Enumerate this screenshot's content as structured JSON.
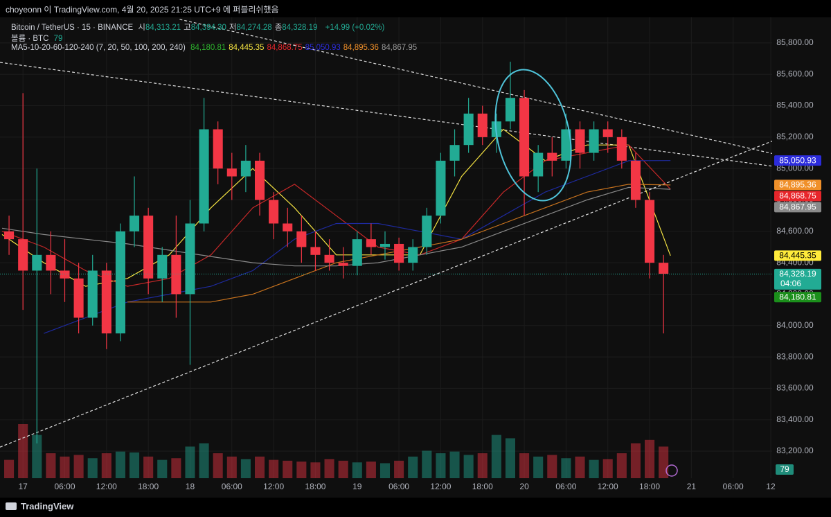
{
  "header": {
    "title": "choyeonn 이 TradingView.com, 4월 20, 2025 21:25 UTC+9 에 퍼블리쉬했음"
  },
  "chart_data": {
    "type": "candlestick",
    "legend": {
      "symbol": "Bitcoin / TetherUS · 15 · BINANCE",
      "ohlc": [
        {
          "label": "시",
          "value": "84,313.21"
        },
        {
          "label": "고",
          "value": "84,394.30"
        },
        {
          "label": "저",
          "value": "84,274.28"
        },
        {
          "label": "종",
          "value": "84,328.19"
        }
      ],
      "change": "+14.99 (+0.02%)",
      "volume_label": "볼륨 · BTC",
      "volume_value": "79",
      "ma_label": "MA5-10-20-60-120-240 (7, 20, 50, 100, 200, 240)",
      "ma_values": [
        {
          "text": "84,180.81",
          "color": "#2fb52f"
        },
        {
          "text": "84,445.35",
          "color": "#f5e342"
        },
        {
          "text": "84,868.75",
          "color": "#e8262b"
        },
        {
          "text": "85,050.93",
          "color": "#2c2cdc"
        },
        {
          "text": "84,895.36",
          "color": "#f0902a"
        },
        {
          "text": "84,867.95",
          "color": "#9a9a9a"
        }
      ]
    },
    "up_color": "#22ab94",
    "down_color": "#f23645",
    "x": [
      -2,
      0,
      2,
      4,
      6,
      8,
      10,
      12,
      14,
      16,
      18,
      20,
      22,
      24,
      26,
      28,
      30,
      32,
      34,
      36,
      38,
      40,
      42,
      44,
      46,
      48,
      50,
      52,
      54,
      56,
      58,
      60,
      62,
      64,
      66,
      68,
      70,
      72,
      74,
      76,
      78,
      80,
      82,
      84,
      86,
      88,
      90,
      92
    ],
    "open": [
      84600,
      84550,
      84350,
      84450,
      84350,
      84300,
      84050,
      84350,
      83950,
      84600,
      84700,
      84300,
      84450,
      84200,
      84650,
      85250,
      85000,
      84950,
      85050,
      84800,
      84650,
      84600,
      84500,
      84450,
      84400,
      84380,
      84550,
      84500,
      84520,
      84400,
      84500,
      84700,
      85050,
      85150,
      85350,
      85200,
      85300,
      85450,
      84950,
      85100,
      85050,
      85250,
      85100,
      85250,
      85200,
      85050,
      84800,
      84400
    ],
    "high": [
      84700,
      85480,
      85000,
      84600,
      84550,
      84400,
      84450,
      84400,
      84650,
      84950,
      84750,
      84500,
      84700,
      84800,
      85450,
      85300,
      85100,
      85150,
      85100,
      84850,
      84750,
      84700,
      84600,
      84550,
      84500,
      84600,
      84650,
      84600,
      84560,
      84550,
      84750,
      85100,
      85250,
      85450,
      85400,
      85350,
      85680,
      85500,
      85150,
      85200,
      85350,
      85300,
      85300,
      85300,
      85250,
      85100,
      84850,
      84450
    ],
    "low": [
      84450,
      84100,
      83250,
      84200,
      84150,
      83950,
      84000,
      83850,
      83900,
      84500,
      84200,
      84150,
      84050,
      83750,
      84600,
      84900,
      84800,
      84850,
      84700,
      84550,
      84500,
      84400,
      84350,
      84350,
      84300,
      84320,
      84450,
      84420,
      84350,
      84350,
      84450,
      84650,
      84950,
      85100,
      85150,
      85100,
      85250,
      84700,
      84850,
      84950,
      85000,
      85000,
      85050,
      85100,
      85000,
      84750,
      84300,
      83950
    ],
    "close": [
      84550,
      84350,
      84450,
      84350,
      84300,
      84050,
      84350,
      83950,
      84600,
      84700,
      84300,
      84450,
      84200,
      84650,
      85250,
      85000,
      84950,
      85050,
      84800,
      84650,
      84600,
      84500,
      84450,
      84400,
      84380,
      84550,
      84500,
      84520,
      84400,
      84500,
      84700,
      85050,
      85150,
      85350,
      85200,
      85300,
      85450,
      84950,
      85100,
      85050,
      85250,
      85100,
      85250,
      85200,
      85050,
      84800,
      84400,
      84330
    ],
    "volume": [
      220,
      650,
      520,
      300,
      260,
      280,
      240,
      300,
      320,
      310,
      260,
      220,
      240,
      380,
      420,
      300,
      260,
      230,
      260,
      220,
      210,
      200,
      190,
      230,
      210,
      190,
      200,
      180,
      210,
      260,
      330,
      300,
      320,
      280,
      300,
      520,
      480,
      300,
      260,
      280,
      240,
      260,
      220,
      230,
      300,
      420,
      460,
      380
    ],
    "volume_lim": [
      0,
      1000
    ],
    "ma_x": [
      -3,
      3,
      9,
      15,
      21,
      27,
      33,
      39,
      45,
      51,
      57,
      63,
      69,
      75,
      81,
      87,
      93
    ],
    "moving_averages": [
      {
        "color": "#f5e342",
        "values": [
          84580,
          84400,
          84250,
          84300,
          84450,
          84750,
          85000,
          84750,
          84450,
          84450,
          84450,
          84950,
          85250,
          85050,
          85150,
          85150,
          84445.35
        ]
      },
      {
        "color": "#c62828",
        "values": [
          84600,
          84500,
          84350,
          84250,
          84300,
          84450,
          84750,
          84900,
          84700,
          84500,
          84450,
          84550,
          84850,
          85050,
          85100,
          85150,
          84868.75
        ]
      },
      {
        "color": "#1e2a9e",
        "values": [
          null,
          83950,
          84050,
          84150,
          84200,
          84250,
          84350,
          84550,
          84650,
          84650,
          84600,
          84550,
          84700,
          84850,
          84950,
          85050,
          85050.93
        ]
      },
      {
        "color": "#c8731e",
        "values": [
          null,
          null,
          null,
          84150,
          84150,
          84150,
          84200,
          84300,
          84400,
          84450,
          84500,
          84550,
          84650,
          84750,
          84850,
          84900,
          84895.36
        ]
      },
      {
        "color": "#8a8a8a",
        "values": [
          84620,
          84580,
          84550,
          84520,
          84480,
          84440,
          84400,
          84380,
          84380,
          84400,
          84450,
          84500,
          84600,
          84700,
          84800,
          84880,
          84867.95
        ]
      }
    ],
    "trend_lines": [
      {
        "x": [
          -3.3,
          107.8
        ],
        "y": [
          85676,
          85014
        ]
      },
      {
        "x": [
          22.5,
          107.8
        ],
        "y": [
          85950,
          85094
        ]
      },
      {
        "x": [
          -3.3,
          107.8
        ],
        "y": [
          83226,
          85178
        ]
      }
    ],
    "xlim": [
      -3.3,
      107.6
    ],
    "xticks": [
      {
        "value": 0,
        "label": "17"
      },
      {
        "value": 6,
        "label": "06:00"
      },
      {
        "value": 12,
        "label": "12:00"
      },
      {
        "value": 18,
        "label": "18:00"
      },
      {
        "value": 24,
        "label": "18"
      },
      {
        "value": 30,
        "label": "06:00"
      },
      {
        "value": 36,
        "label": "12:00"
      },
      {
        "value": 42,
        "label": "18:00"
      },
      {
        "value": 48,
        "label": "19"
      },
      {
        "value": 54,
        "label": "06:00"
      },
      {
        "value": 60,
        "label": "12:00"
      },
      {
        "value": 66,
        "label": "18:00"
      },
      {
        "value": 72,
        "label": "20"
      },
      {
        "value": 78,
        "label": "06:00"
      },
      {
        "value": 84,
        "label": "12:00"
      },
      {
        "value": 90,
        "label": "18:00"
      },
      {
        "value": 96,
        "label": "21"
      },
      {
        "value": 102,
        "label": "06:00"
      },
      {
        "value": 107.4,
        "label": "12"
      }
    ],
    "ylim": [
      83028,
      85963
    ],
    "yticks": [
      {
        "value": 83200,
        "label": "83,200.00"
      },
      {
        "value": 83400,
        "label": "83,400.00"
      },
      {
        "value": 83600,
        "label": "83,600.00"
      },
      {
        "value": 83800,
        "label": "83,800.00"
      },
      {
        "value": 84000,
        "label": "84,000.00"
      },
      {
        "value": 84200,
        "label": "84,200.00"
      },
      {
        "value": 84400,
        "label": "84,400.00"
      },
      {
        "value": 84600,
        "label": "84,600.00"
      },
      {
        "value": 84800,
        "label": "84,800.00"
      },
      {
        "value": 85000,
        "label": "85,000.00"
      },
      {
        "value": 85200,
        "label": "85,200.00"
      },
      {
        "value": 85400,
        "label": "85,400.00"
      },
      {
        "value": 85600,
        "label": "85,600.00"
      },
      {
        "value": 85800,
        "label": "85,800.00"
      }
    ],
    "price_tags": [
      {
        "value": 85050.93,
        "label": "85,050.93",
        "color": "#2c2cdc",
        "text_color": "#ffffff"
      },
      {
        "value": 84895.36,
        "label": "84,895.36",
        "color": "#f0902a",
        "text_color": "#ffffff"
      },
      {
        "value": 84868.75,
        "label": "84,868.75",
        "color": "#e8262b",
        "text_color": "#ffffff"
      },
      {
        "value": 84867.95,
        "label": "84,867.95",
        "color": "#8a8a8a",
        "text_color": "#ffffff"
      },
      {
        "value": 84445.35,
        "label": "84,445.35",
        "color": "#ffeb3b",
        "text_color": "#000000"
      },
      {
        "value": 84328.19,
        "label": "84,328.19",
        "color": "#22ab94",
        "text_color": "#ffffff",
        "countdown": "04:06"
      },
      {
        "value": 84180.81,
        "label": "84,180.81",
        "color": "#1b8f1b",
        "text_color": "#ffffff"
      }
    ]
  },
  "footer": {
    "brand": "TradingView"
  }
}
